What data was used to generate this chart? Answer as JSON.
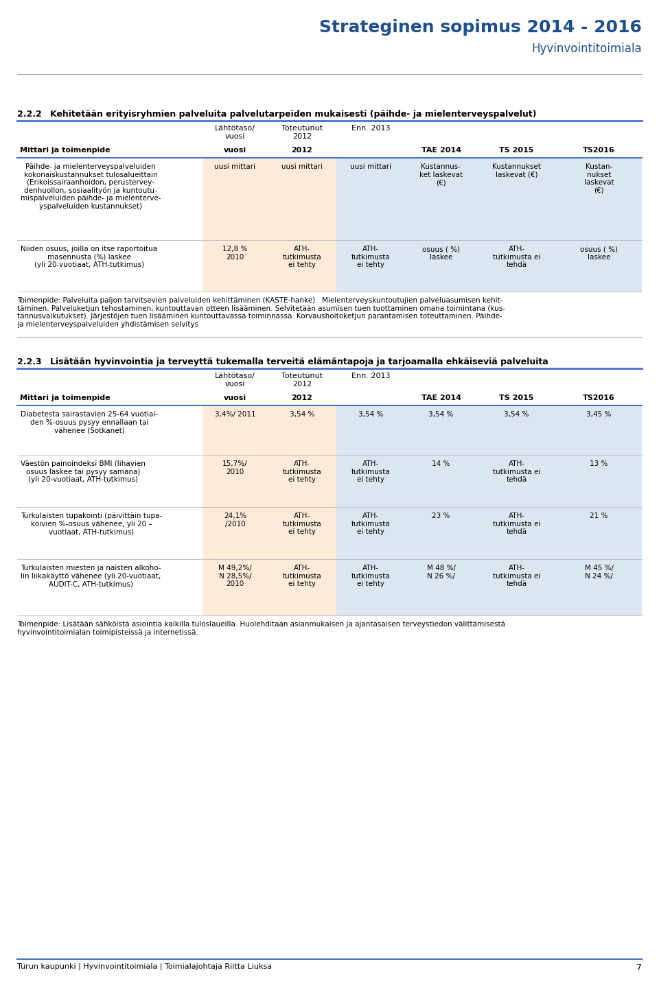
{
  "title": "Strateginen sopimus 2014 - 2016",
  "subtitle": "Hyvinvointitoimiala",
  "title_color": "#1F4E8C",
  "subtitle_color": "#1F4E8C",
  "section_line_color": "#4472C4",
  "separator_color": "#AAAAAA",
  "text_color": "#000000",
  "bg_orange": "#FCEBD9",
  "bg_blue": "#DCE6F1",
  "bg_white": "#FFFFFF",
  "section_222_number": "2.2.2",
  "section_222_title": "Kehitetään erityisryhmien palveluita palvelutarpeiden mukaisesti (päihde- ja mielenterveyspalvelut)",
  "section_223_number": "2.2.3",
  "section_223_title": "Lisätään hyvinvointia ja terveyttä tukemalla terveitä elämäntapoja ja tarjoamalla ehkäiseviä palveluita",
  "col_headers": [
    "Mittari ja toimenpide",
    "Lähtötaso/\nvuosi",
    "Toteutunut\n2012",
    "Enn. 2013",
    "TAE 2014",
    "TS 2015",
    "TS2016"
  ],
  "footer_text": "Turun kaupunki | Hyvinvointitoimiala | Toimialajohtaja Riitta Liuksa",
  "footer_page": "7",
  "section222_rows": [
    {
      "col0": "Päihde- ja mielenterveyspalveluiden\nkokonaiskustannukset tulosalueittain\n(Erikoissairaanhoidon, perustervey-\ndenhuollon, sosiaalityön ja kuntoutu-\nmispalveluiden päihde- ja mielenterve-\nyspalveluiden kustannukset)",
      "col1": "uusi mittari",
      "col2": "uusi mittari",
      "col3": "uusi mittari",
      "col4": "Kustannus-\nket laskevat\n(€)",
      "col5": "Kustannukset\nlaskevat (€)",
      "col6": "Kustan-\nnukset\nlaskevat\n(€)"
    },
    {
      "col0": "Niiden osuus, joilla on itse raportoitua\nmasennusta (%) laskee\n(yli 20-vuotiaat, ATH-tutkimus)",
      "col1": "12,8 %\n2010",
      "col2": "ATH-\ntutkimusta\nei tehty",
      "col3": "ATH-\ntutkimusta\nei tehty",
      "col4": "osuus ( %)\nlaskee",
      "col5": "ATH-\ntutkimusta ei\ntehdä",
      "col6": "osuus ( %)\nlaskee"
    }
  ],
  "section222_toimenpide": "Toimenpide: Palveluita paljon tarvitsevien palveluiden kehittäminen (KASTE-hanke).  Mielenterveyskuntoutujien palveluasumisen kehit-\ntäminen. Palveluketjun tehostaminen, kuntouttavan otteen lisääminen. Selvitetään asumisen tuen tuottaminen omana toimintana (kus-\ntannusvaikutukset). Järjestöjen tuen lisääminen kuntouttavassa toiminnassa. Korvaushoitoketjun parantamisen toteuttaminen. Päihde-\nja mielenterveyspalveluiden yhdistämisen selvitys",
  "section223_rows": [
    {
      "col0": "Diabetesta sairastavien 25-64 vuotiai-\nden %-osuus pysyy ennallaan tai\nvähenee (Sotkanet)",
      "col1": "3,4%/ 2011",
      "col2": "3,54 %",
      "col3": "3,54 %",
      "col4": "3,54 %",
      "col5": "3,54 %",
      "col6": "3,45 %"
    },
    {
      "col0": "Väestön painoindeksi BMI (lihavien\nosuus laskee tai pysyy samana)\n(yli 20-vuotiaat, ATH-tutkimus)",
      "col1": "15,7%/\n2010",
      "col2": "ATH-\ntutkimusta\nei tehty",
      "col3": "ATH-\ntutkimusta\nei tehty",
      "col4": "14 %",
      "col5": "ATH-\ntutkimusta ei\ntehdä",
      "col6": "13 %"
    },
    {
      "col0": "Turkulaisten tupakointi (päivittäin tupa-\nkoivien %-osuus vähenee, yli 20 –\nvuotiaat, ATH-tutkimus)",
      "col1": "24,1%\n/2010",
      "col2": "ATH-\ntutkimusta\nei tehty",
      "col3": "ATH-\ntutkimusta\nei tehty",
      "col4": "23 %",
      "col5": "ATH-\ntutkimusta ei\ntehdä",
      "col6": "21 %"
    },
    {
      "col0": "Turkulaisten miesten ja naisten alkoho-\nlin liikakäyttö vähenee (yli 20-vuotiaat,\nAUDIT-C, ATH-tutkimus)",
      "col1": "M 49,2%/\nN 28,5%/\n2010",
      "col2": "ATH-\ntutkimusta\nei tehty",
      "col3": "ATH-\ntutkimusta\nei tehty",
      "col4": "M 48 %/\nN 26 %/",
      "col5": "ATH-\ntutkimusta ei\ntehdä",
      "col6": "M 45 %/\nN 24 %/"
    }
  ],
  "section223_toimenpide": "Toimenpide: Lisätään sähköistä asiointia kaikilla tuloslaueilla. Huolehditaan asianmukaisen ja ajantasaisen terveystiedon välittämisestä\nhyvinvointitoimialan toimipisteissä ja internetissä."
}
